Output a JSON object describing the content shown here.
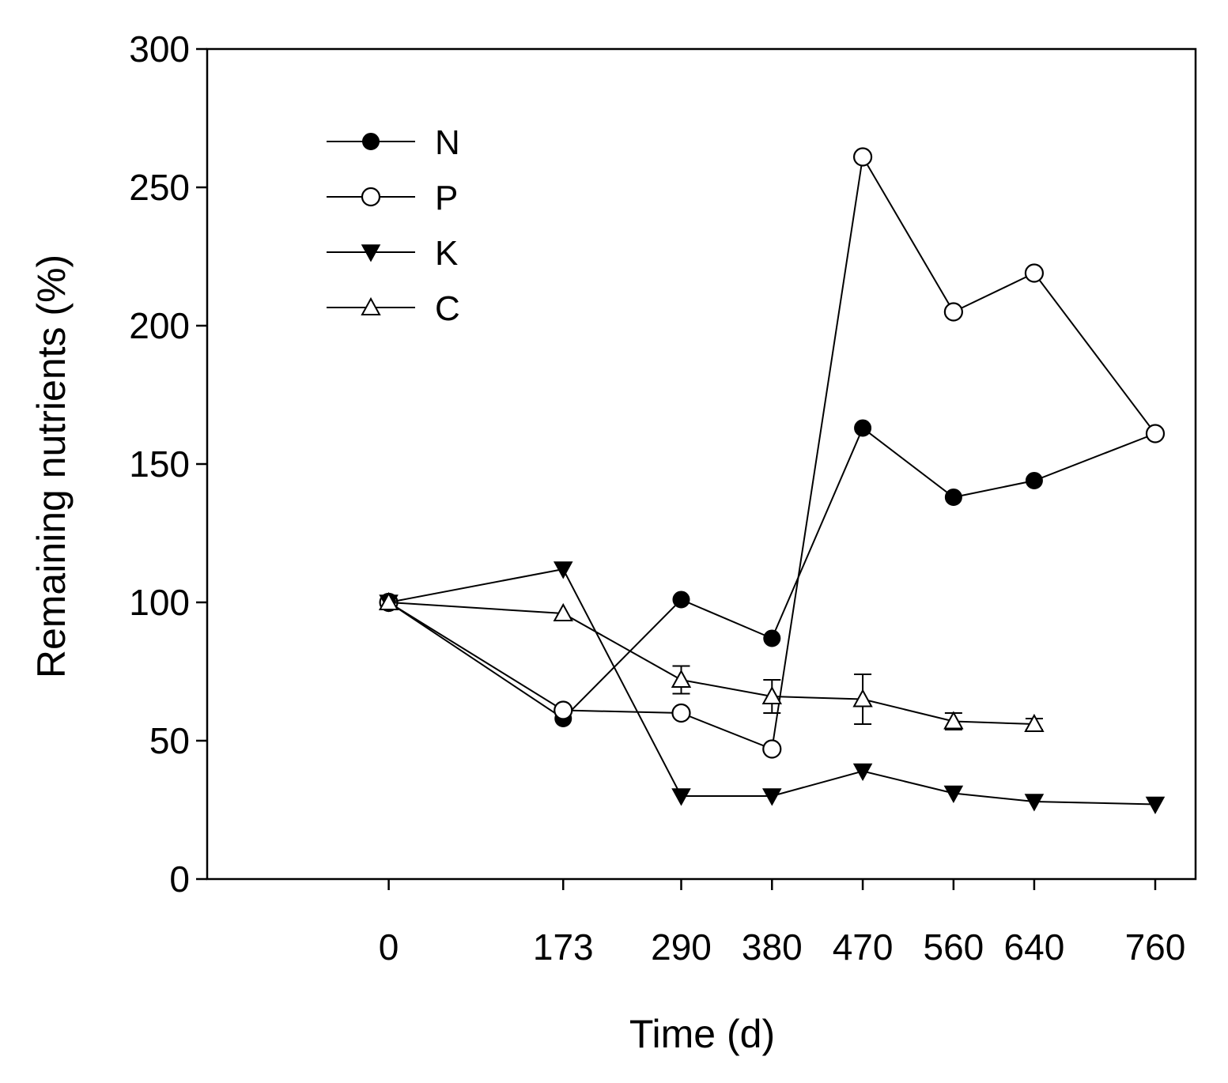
{
  "chart_data": {
    "type": "line",
    "title": "",
    "xlabel": "Time (d)",
    "ylabel": "Remaining nutrients  (%)",
    "x": [
      0,
      173,
      290,
      380,
      470,
      560,
      640,
      760
    ],
    "xticks": [
      "0",
      "173",
      "290",
      "380",
      "470",
      "560",
      "640",
      "760"
    ],
    "yticks": [
      "0",
      "50",
      "100",
      "150",
      "200",
      "250",
      "300"
    ],
    "ylim": [
      0,
      300
    ],
    "xlim": [
      -180,
      800
    ],
    "grid": false,
    "legend_position": "top-left",
    "series": [
      {
        "name": "N",
        "marker": "circle-filled",
        "x": [
          0,
          173,
          290,
          380,
          470,
          560,
          640,
          760
        ],
        "values": [
          100,
          58,
          101,
          87,
          163,
          138,
          144,
          161
        ]
      },
      {
        "name": "P",
        "marker": "circle-open",
        "x": [
          0,
          173,
          290,
          380,
          470,
          560,
          640,
          760
        ],
        "values": [
          100,
          61,
          60,
          47,
          261,
          205,
          219,
          161
        ]
      },
      {
        "name": "K",
        "marker": "triangle-down-filled",
        "x": [
          0,
          173,
          290,
          380,
          470,
          560,
          640,
          760
        ],
        "values": [
          100,
          112,
          30,
          30,
          39,
          31,
          28,
          27
        ]
      },
      {
        "name": "C",
        "marker": "triangle-up-open",
        "x": [
          0,
          173,
          290,
          380,
          470,
          560,
          640
        ],
        "values": [
          100,
          96,
          72,
          66,
          65,
          57,
          56
        ],
        "errors": [
          0,
          0,
          5,
          6,
          9,
          3,
          2
        ]
      }
    ]
  }
}
